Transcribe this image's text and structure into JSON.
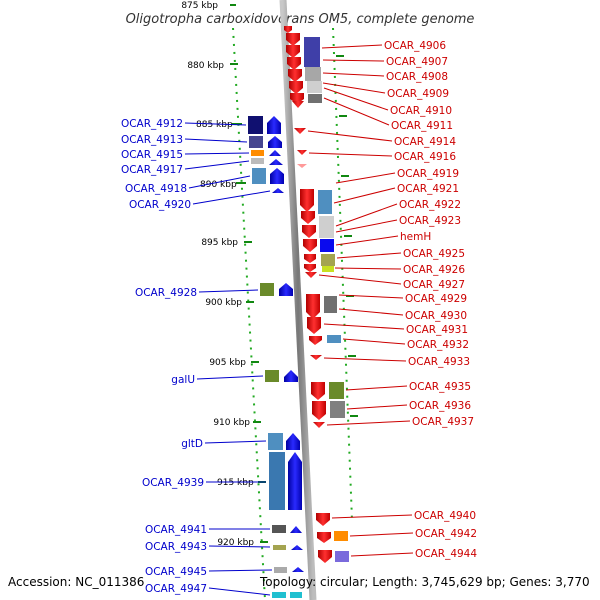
{
  "title": "Oligotropha carboxidovorans OM5, complete genome",
  "footer": {
    "accession": "Accession: NC_011386",
    "topology": "Topology: circular; Length: 3,745,629 bp; Genes: 3,770"
  },
  "kbp_labels": [
    "875 kbp",
    "880 kbp",
    "885 kbp",
    "890 kbp",
    "895 kbp",
    "900 kbp",
    "905 kbp",
    "910 kbp",
    "915 kbp",
    "920 kbp"
  ],
  "genes_left": [
    "OCAR_4912",
    "OCAR_4913",
    "OCAR_4915",
    "OCAR_4917",
    "OCAR_4918",
    "OCAR_4920",
    "OCAR_4928",
    "galU",
    "gltD",
    "OCAR_4939",
    "OCAR_4941",
    "OCAR_4943",
    "OCAR_4945",
    "OCAR_4947"
  ],
  "genes_right": [
    "OCAR_4906",
    "OCAR_4907",
    "OCAR_4908",
    "OCAR_4909",
    "OCAR_4910",
    "OCAR_4911",
    "OCAR_4914",
    "OCAR_4916",
    "OCAR_4919",
    "OCAR_4921",
    "OCAR_4922",
    "OCAR_4923",
    "hemH",
    "OCAR_4925",
    "OCAR_4926",
    "OCAR_4927",
    "OCAR_4929",
    "OCAR_4930",
    "OCAR_4931",
    "OCAR_4932",
    "OCAR_4933",
    "OCAR_4935",
    "OCAR_4936",
    "OCAR_4937",
    "OCAR_4940",
    "OCAR_4942",
    "OCAR_4944"
  ],
  "colors": {
    "forward_strand": "#0000ee",
    "reverse_strand": "#ee0000",
    "backbone": "#888888",
    "tick_marks": "#22aa22",
    "left_label": "#0000cc",
    "right_label": "#cc0000"
  }
}
